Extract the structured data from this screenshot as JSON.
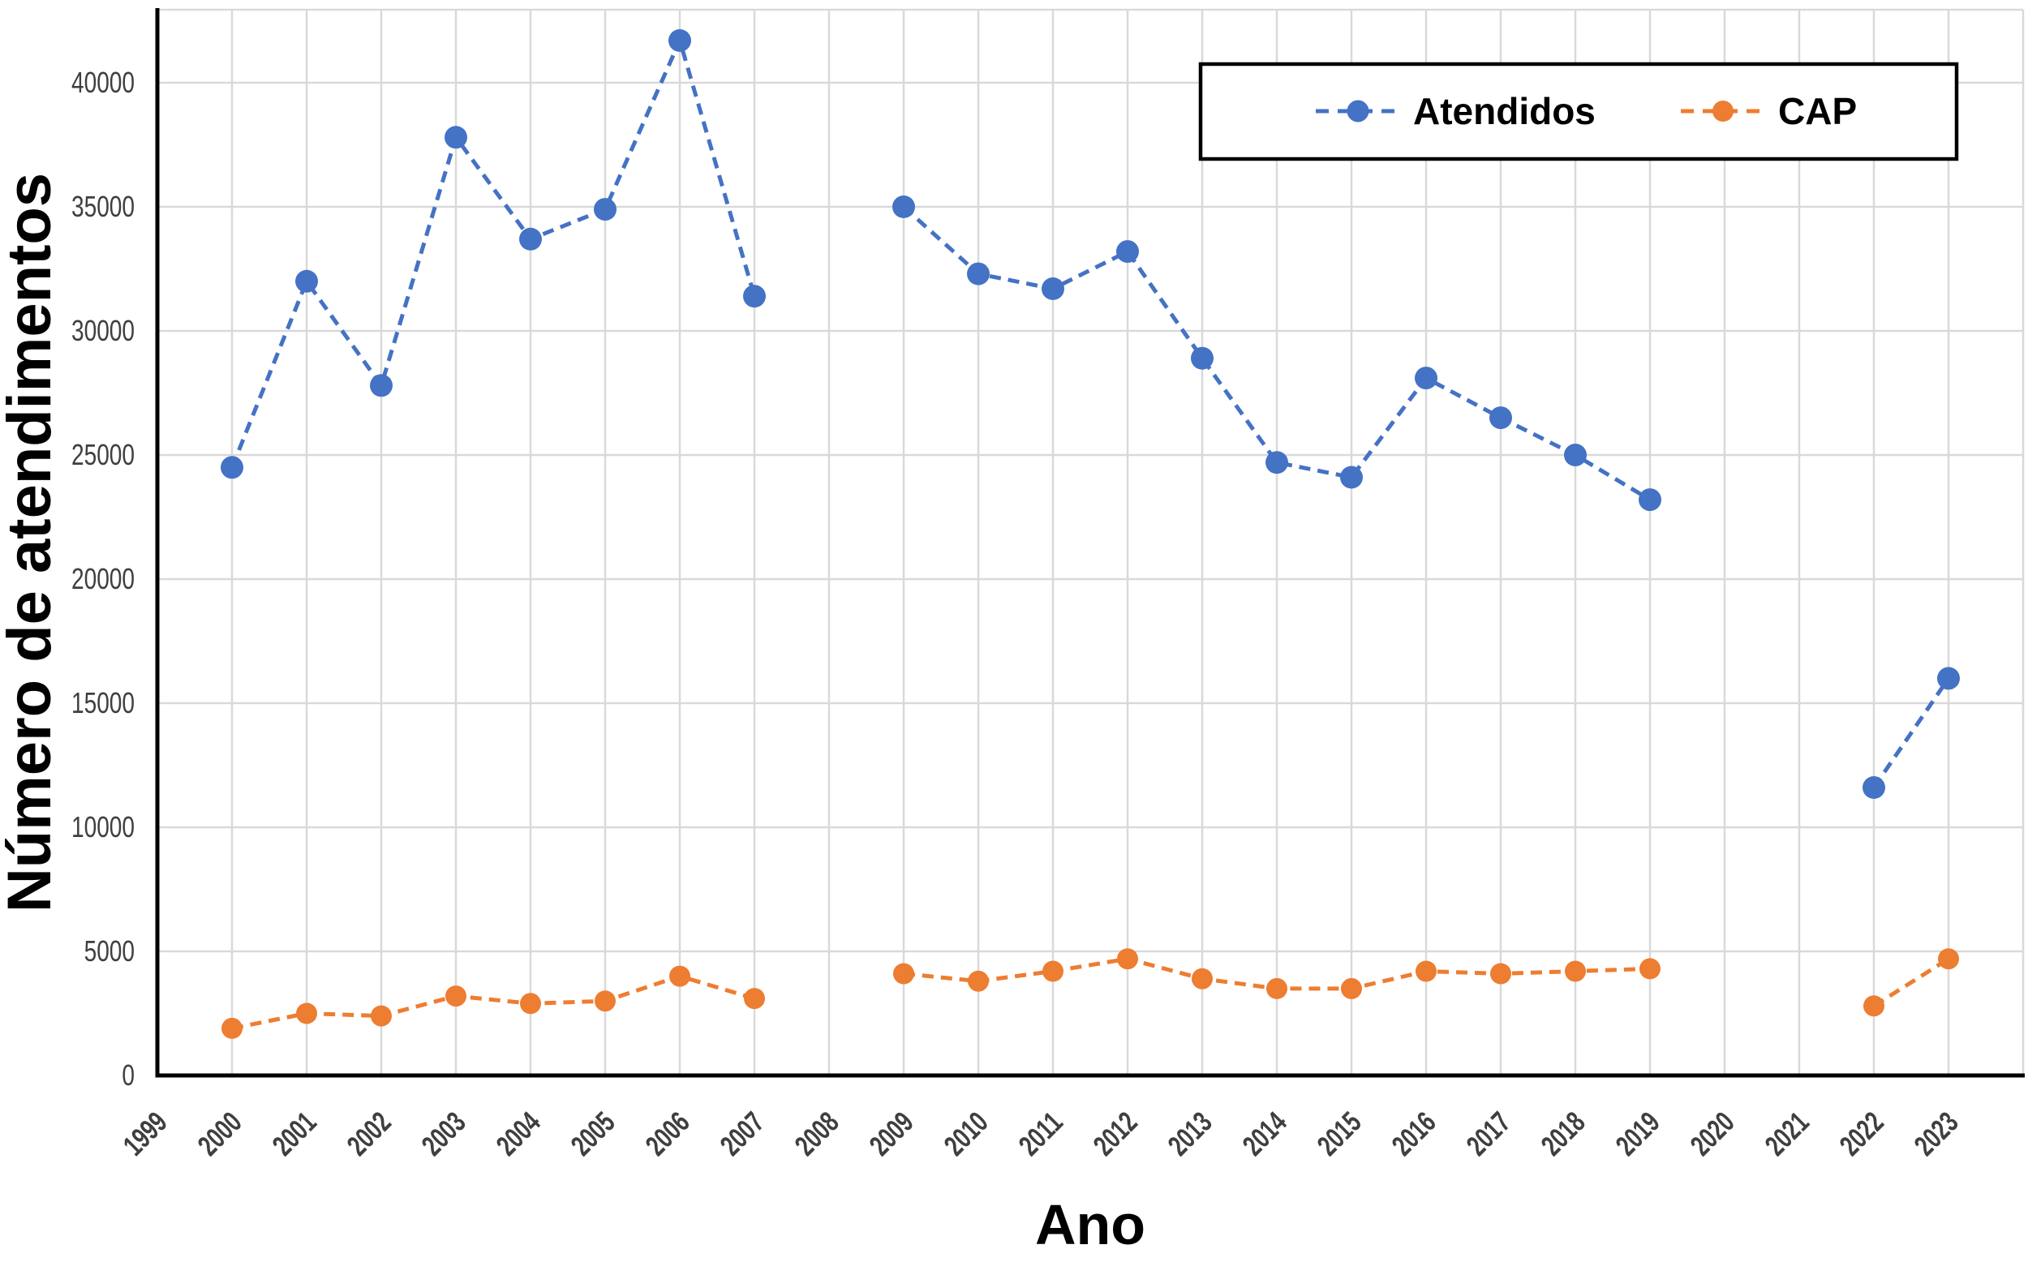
{
  "chart_data": {
    "type": "line",
    "title": "",
    "xlabel": "Ano",
    "ylabel": "Número de atendimentos",
    "categories": [
      "1999",
      "2000",
      "2001",
      "2002",
      "2003",
      "2004",
      "2005",
      "2006",
      "2007",
      "2008",
      "2009",
      "2010",
      "2011",
      "2012",
      "2013",
      "2014",
      "2015",
      "2016",
      "2017",
      "2018",
      "2019",
      "2020",
      "2021",
      "2022",
      "2023"
    ],
    "ylim": [
      0,
      43000
    ],
    "yticks": [
      0,
      5000,
      10000,
      15000,
      20000,
      25000,
      30000,
      35000,
      40000
    ],
    "grid": true,
    "line_style": "dashed",
    "marker": "circle",
    "legend": {
      "position": "top-right",
      "background": "#FFFFFF",
      "border_color": "#000000"
    },
    "series": [
      {
        "name": "Atendidos",
        "color": "#4472C4",
        "values": [
          null,
          24500,
          32000,
          27800,
          37800,
          33700,
          34900,
          41700,
          31400,
          null,
          35000,
          32300,
          31700,
          33200,
          28900,
          24700,
          24100,
          28100,
          26500,
          25000,
          23200,
          null,
          null,
          11600,
          16000
        ]
      },
      {
        "name": "CAP",
        "color": "#ED7D31",
        "values": [
          null,
          1900,
          2500,
          2400,
          3200,
          2900,
          3000,
          4000,
          3100,
          null,
          4100,
          3800,
          4200,
          4700,
          3900,
          3500,
          3500,
          4200,
          4100,
          4200,
          4300,
          null,
          null,
          2800,
          4700
        ]
      }
    ],
    "colors": {
      "grid": "#D9D9D9",
      "axis": "#000000",
      "tick_label": "#3F3F3F",
      "title_text": "#000000"
    }
  }
}
